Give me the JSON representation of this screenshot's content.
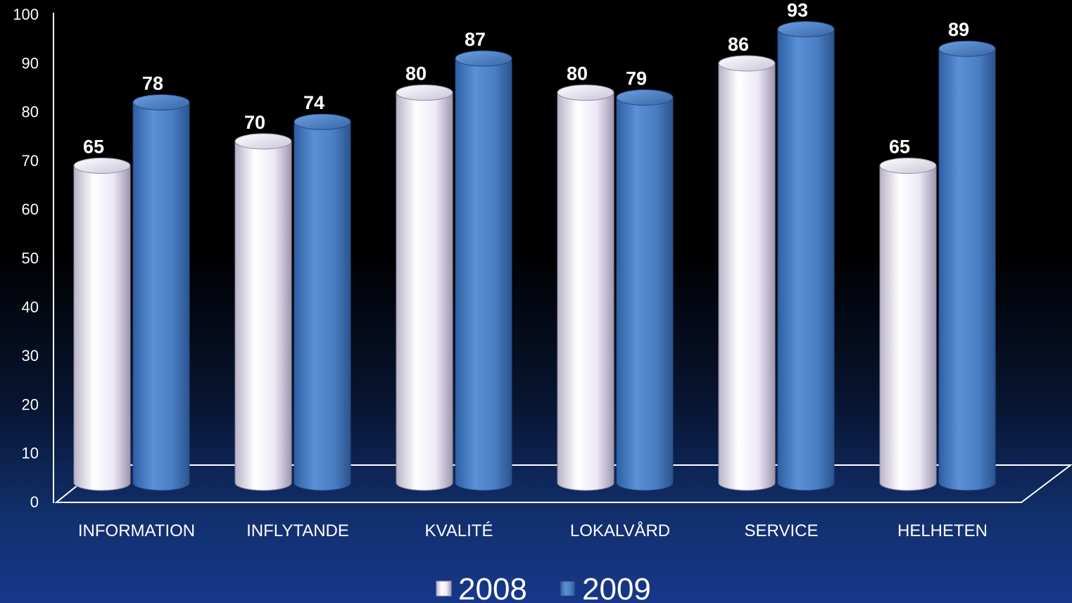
{
  "chart_data": {
    "type": "bar",
    "categories": [
      "INFORMATION",
      "INFLYTANDE",
      "KVALITÉ",
      "LOKALVÅRD",
      "SERVICE",
      "HELHETEN"
    ],
    "series": [
      {
        "name": "2008",
        "values": [
          65,
          70,
          80,
          80,
          86,
          65
        ],
        "color": "#e6e2f2"
      },
      {
        "name": "2009",
        "values": [
          78,
          74,
          87,
          79,
          93,
          89
        ],
        "color": "#4f82c6"
      }
    ],
    "ylim": [
      0,
      100
    ],
    "yticks": [
      0,
      10,
      20,
      30,
      40,
      50,
      60,
      70,
      80,
      90,
      100
    ],
    "title": "",
    "xlabel": "",
    "ylabel": "",
    "grid": false,
    "legend": "bottom-center",
    "style": "3d-cylinder"
  }
}
